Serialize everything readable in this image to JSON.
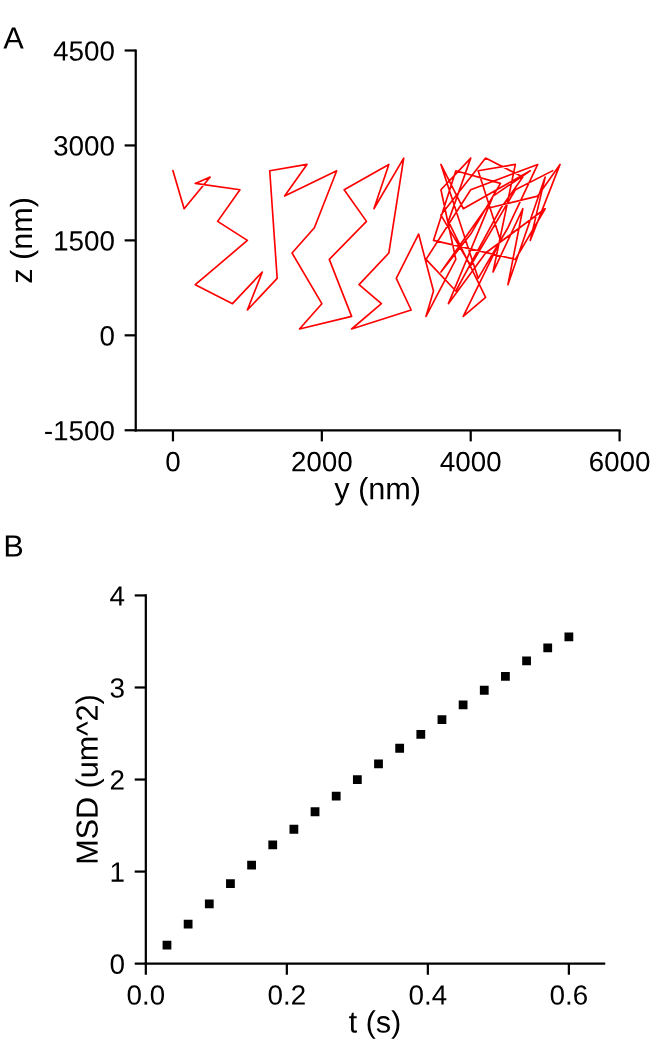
{
  "chart_data": [
    {
      "type": "line",
      "title": "A",
      "xlabel": "y (nm)",
      "ylabel": "z (nm)",
      "color": "#ff0000",
      "xlim": [
        -500,
        6000
      ],
      "xticks": [
        0,
        2000,
        4000,
        6000
      ],
      "ylim": [
        -1500,
        4500
      ],
      "yticks": [
        -1500,
        0,
        1500,
        3000,
        4500
      ],
      "grid": false,
      "marker": "none",
      "line_style": "solid",
      "x": [
        0,
        150,
        500,
        300,
        900,
        600,
        1000,
        700,
        300,
        800,
        1200,
        1000,
        1400,
        1300,
        1800,
        1500,
        2200,
        1900,
        1600,
        2000,
        1700,
        2400,
        2100,
        2600,
        2300,
        2900,
        2700,
        3100,
        2900,
        2500,
        2800,
        2400,
        3200,
        3000,
        3300,
        3500,
        3400,
        3800,
        3600,
        4000,
        3700,
        4200,
        3900,
        4400,
        4100,
        4600,
        4300,
        4700,
        4500,
        5000,
        4800,
        5200,
        4900,
        4200,
        3600,
        4000,
        4400,
        3800,
        3500,
        4600,
        5000,
        4200,
        3700,
        4300,
        4800,
        3900,
        3600,
        4100,
        4500,
        4900,
        4000,
        3400,
        3800,
        4400,
        4700,
        4200,
        3600,
        4000,
        4600,
        5100
      ],
      "values": [
        2600,
        2000,
        2500,
        2400,
        2300,
        1800,
        1500,
        1200,
        800,
        500,
        1000,
        400,
        900,
        2600,
        2700,
        2200,
        2600,
        1700,
        1300,
        500,
        100,
        300,
        1200,
        1800,
        2300,
        2700,
        2000,
        2800,
        1300,
        800,
        500,
        100,
        400,
        900,
        1600,
        700,
        300,
        1200,
        2300,
        2800,
        1800,
        600,
        300,
        1500,
        2600,
        2700,
        1000,
        2000,
        800,
        2500,
        1500,
        2700,
        2200,
        2000,
        1000,
        1600,
        2400,
        2600,
        1500,
        1200,
        2000,
        1300,
        500,
        2200,
        2600,
        2000,
        2700,
        900,
        1700,
        2700,
        2300,
        1200,
        700,
        2000,
        2500,
        2800,
        1900,
        1100,
        2300,
        2600
      ]
    },
    {
      "type": "scatter",
      "title": "B",
      "xlabel": "t (s)",
      "ylabel": "MSD (um^2)",
      "color": "#000000",
      "xlim": [
        0,
        0.65
      ],
      "xticks": [
        {
          "value": 0,
          "label": "0.0"
        },
        {
          "value": 0.2,
          "label": "0.2"
        },
        {
          "value": 0.4,
          "label": "0.4"
        },
        {
          "value": 0.6,
          "label": "0.6"
        }
      ],
      "ylim": [
        0,
        4
      ],
      "yticks": [
        0,
        1,
        2,
        3,
        4
      ],
      "grid": false,
      "marker": "square",
      "x": [
        0.03,
        0.06,
        0.09,
        0.12,
        0.15,
        0.18,
        0.21,
        0.24,
        0.27,
        0.3,
        0.33,
        0.36,
        0.39,
        0.42,
        0.45,
        0.48,
        0.51,
        0.54,
        0.57,
        0.6
      ],
      "values": [
        0.2,
        0.43,
        0.65,
        0.87,
        1.07,
        1.29,
        1.46,
        1.65,
        1.82,
        2.0,
        2.17,
        2.34,
        2.49,
        2.65,
        2.81,
        2.97,
        3.12,
        3.29,
        3.43,
        3.55
      ]
    }
  ]
}
